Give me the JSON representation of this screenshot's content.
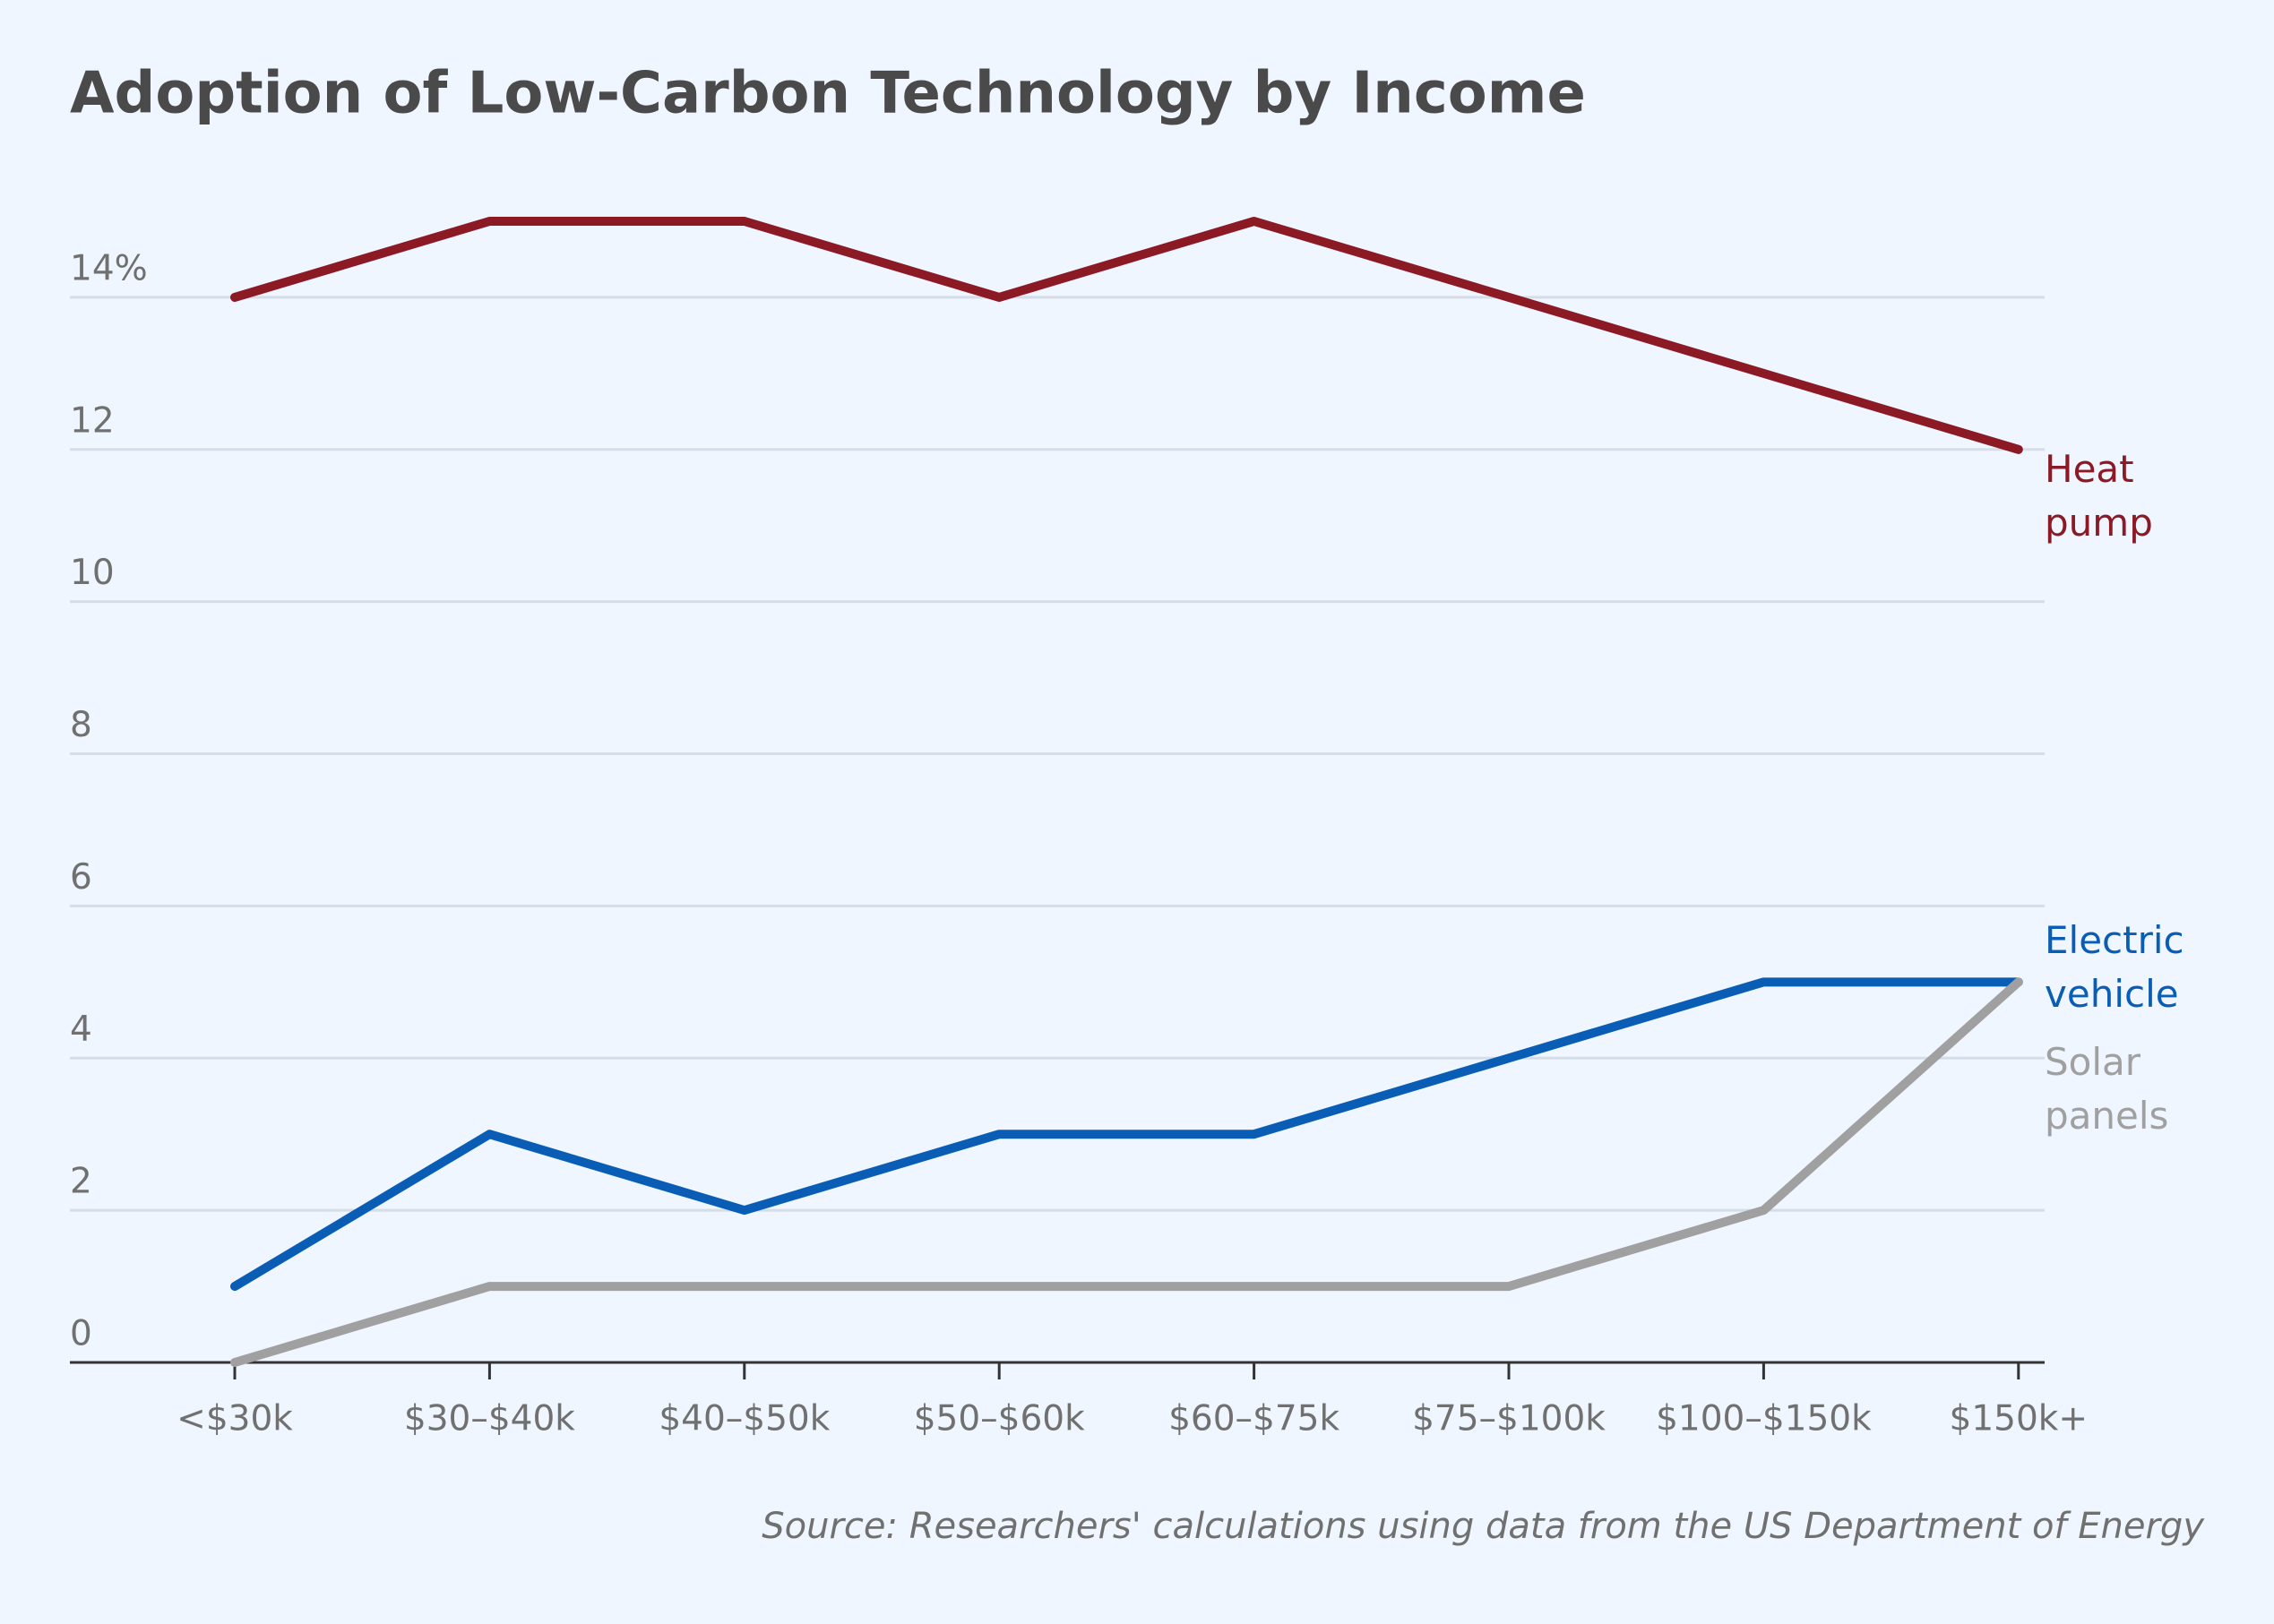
{
  "chart_data": {
    "type": "line",
    "title": "Adoption of Low-Carbon Technology by Income",
    "source": "Source: Researchers' calculations using data from the US Department of Energy",
    "categories": [
      "<$30k",
      "$30–$40k",
      "$40–$50k",
      "$50–$60k",
      "$60–$75k",
      "$75–$100k",
      "$100–$150k",
      "$150k+"
    ],
    "series": [
      {
        "name": "Heat pump",
        "color": "#8b1a24",
        "values": [
          14,
          15,
          15,
          14,
          15,
          14,
          13,
          12
        ]
      },
      {
        "name": "Electric vehicle",
        "color": "#0a5db5",
        "values": [
          1,
          3,
          2,
          3,
          3,
          4,
          5,
          5
        ]
      },
      {
        "name": "Solar panels",
        "color": "#a0a0a0",
        "values": [
          0,
          1,
          1,
          1,
          1,
          1,
          2,
          5
        ]
      }
    ],
    "ylim": [
      0,
      15
    ],
    "yticks": [
      0,
      2,
      4,
      6,
      8,
      10,
      12,
      {
        "value": 14,
        "label": "14%"
      }
    ],
    "grid": true
  }
}
